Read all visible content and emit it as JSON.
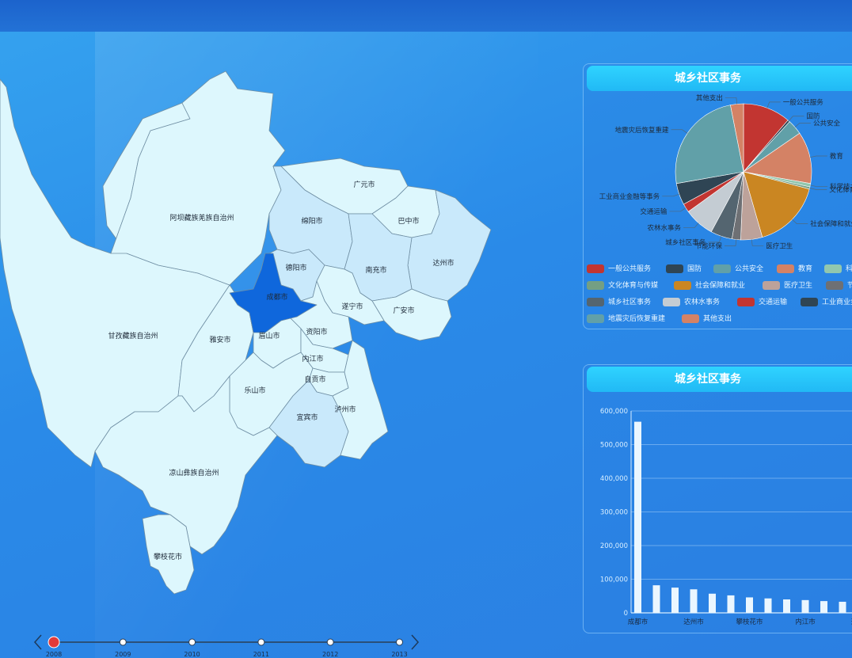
{
  "map": {
    "regions": [
      {
        "name": "阿坝藏族羌族自治州",
        "shade": "light"
      },
      {
        "name": "甘孜藏族自治州",
        "shade": "light"
      },
      {
        "name": "凉山彝族自治州",
        "shade": "light"
      },
      {
        "name": "攀枝花市",
        "shade": "light"
      },
      {
        "name": "广元市",
        "shade": "light"
      },
      {
        "name": "绵阳市",
        "shade": "mid"
      },
      {
        "name": "巴中市",
        "shade": "light"
      },
      {
        "name": "达州市",
        "shade": "mid"
      },
      {
        "name": "德阳市",
        "shade": "mid"
      },
      {
        "name": "南充市",
        "shade": "mid"
      },
      {
        "name": "成都市",
        "shade": "selected"
      },
      {
        "name": "遂宁市",
        "shade": "light"
      },
      {
        "name": "广安市",
        "shade": "light"
      },
      {
        "name": "资阳市",
        "shade": "light"
      },
      {
        "name": "雅安市",
        "shade": "light"
      },
      {
        "name": "眉山市",
        "shade": "light"
      },
      {
        "name": "内江市",
        "shade": "light"
      },
      {
        "name": "乐山市",
        "shade": "light"
      },
      {
        "name": "自贡市",
        "shade": "light"
      },
      {
        "name": "宜宾市",
        "shade": "mid"
      },
      {
        "name": "泸州市",
        "shade": "light"
      }
    ],
    "colors": {
      "light": "#ddf7fd",
      "mid": "#c9e9fb",
      "selected": "#0f67dc",
      "border": "#6f8ea3"
    }
  },
  "pie_panel": {
    "title": "城乡社区事务",
    "legend": [
      {
        "name": "一般公共服务",
        "color": "#c23531"
      },
      {
        "name": "国防",
        "color": "#2f4554"
      },
      {
        "name": "公共安全",
        "color": "#61a0a8"
      },
      {
        "name": "教育",
        "color": "#d48265"
      },
      {
        "name": "科学技术",
        "color": "#91c7ae"
      },
      {
        "name": "文化体育与传媒",
        "color": "#749f83"
      },
      {
        "name": "社会保障和就业",
        "color": "#ca8622"
      },
      {
        "name": "医疗卫生",
        "color": "#bda29a"
      },
      {
        "name": "节能环保",
        "color": "#6e7074"
      },
      {
        "name": "城乡社区事务",
        "color": "#546570"
      },
      {
        "name": "农林水事务",
        "color": "#c4ccd3"
      },
      {
        "name": "交通运输",
        "color": "#c23531"
      },
      {
        "name": "工业商业金融等事务",
        "color": "#2f4554"
      },
      {
        "name": "地震灾后恢复重建",
        "color": "#61a0a8"
      },
      {
        "name": "其他支出",
        "color": "#d48265"
      }
    ],
    "pie_labels": [
      "一般公共服务",
      "国防",
      "公共安全",
      "教育",
      "科学技术",
      "文化体育与传媒",
      "社会保障和就业",
      "医疗卫生",
      "节能环保",
      "城乡社区事务",
      "农林水事务",
      "交通运输",
      "工业商业金融等事务",
      "地震灾后恢复重建",
      "其他支出"
    ],
    "label_colors": {
      "text": "#1e2a38",
      "line": "#4c6a82"
    }
  },
  "bar_panel": {
    "title": "城乡社区事务"
  },
  "chart_data": [
    {
      "type": "pie",
      "title": "城乡社区事务",
      "categories": [
        "一般公共服务",
        "国防",
        "公共安全",
        "教育",
        "科学技术",
        "文化体育与传媒",
        "社会保障和就业",
        "医疗卫生",
        "节能环保",
        "城乡社区事务",
        "农林水事务",
        "交通运输",
        "工业商业金融等事务",
        "地震灾后恢复重建",
        "其他支出"
      ],
      "values": [
        11,
        0.5,
        3.5,
        12,
        0.8,
        0.5,
        16,
        5,
        2,
        5,
        7,
        2,
        5,
        24,
        3
      ]
    },
    {
      "type": "bar",
      "title": "城乡社区事务",
      "categories": [
        "成都市",
        "",
        "",
        "达州市",
        "",
        "",
        "攀枝花市",
        "",
        "",
        "内江市",
        "",
        "",
        "遂宁市",
        ""
      ],
      "values": [
        568000,
        82000,
        75000,
        70000,
        57000,
        52000,
        46000,
        43000,
        40000,
        38000,
        35000,
        33000,
        31000,
        28000
      ],
      "yticks": [
        "0",
        "100,000",
        "200,000",
        "300,000",
        "400,000",
        "500,000",
        "600,000"
      ],
      "ylim": [
        0,
        600000
      ]
    }
  ],
  "timeline": {
    "years": [
      "2008",
      "2009",
      "2010",
      "2011",
      "2012",
      "2013"
    ],
    "active_index": 0
  }
}
